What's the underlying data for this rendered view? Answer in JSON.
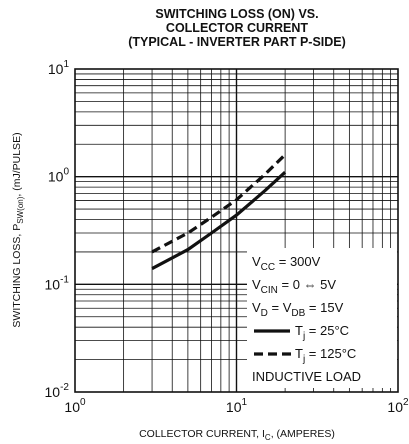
{
  "chart_data": {
    "type": "line",
    "title": [
      "SWITCHING LOSS (ON) VS.",
      "COLLECTOR CURRENT",
      "(TYPICAL - INVERTER PART P-SIDE)"
    ],
    "xlabel": {
      "base": "COLLECTOR CURRENT, I",
      "sub": "C",
      "rest": ", (AMPERES)"
    },
    "ylabel": {
      "base": "SWITCHING LOSS, P",
      "sub": "SW(on)",
      "rest": ", (mJ/PULSE)"
    },
    "x_scale": "log",
    "y_scale": "log",
    "xlim": [
      1,
      100
    ],
    "ylim": [
      0.01,
      10
    ],
    "grid": true,
    "x_ticks": [
      {
        "base": "10",
        "exp": "0",
        "value": 1
      },
      {
        "base": "10",
        "exp": "1",
        "value": 10
      },
      {
        "base": "10",
        "exp": "2",
        "value": 100
      }
    ],
    "y_ticks": [
      {
        "base": "10",
        "exp": "-2",
        "value": 0.01
      },
      {
        "base": "10",
        "exp": "-1",
        "value": 0.1
      },
      {
        "base": "10",
        "exp": "0",
        "value": 1
      },
      {
        "base": "10",
        "exp": "1",
        "value": 10
      }
    ],
    "series": [
      {
        "name": "Tj = 25°C",
        "style": "solid",
        "x": [
          3,
          5,
          7,
          10,
          15,
          20
        ],
        "y": [
          0.14,
          0.21,
          0.3,
          0.44,
          0.74,
          1.1
        ]
      },
      {
        "name": "Tj = 125°C",
        "style": "dashed",
        "x": [
          3,
          5,
          7,
          10,
          15,
          20
        ],
        "y": [
          0.2,
          0.3,
          0.42,
          0.61,
          1.05,
          1.6
        ]
      }
    ],
    "annotations": {
      "vcc": {
        "base": "V",
        "sub": "CC",
        "rest": " = 300V"
      },
      "vcin": {
        "base": "V",
        "sub": "CIN",
        "rest": " = 0 ⇔ 5V"
      },
      "vd": {
        "base": "V",
        "sub": "D",
        "mid": " = V",
        "sub2": "DB",
        "rest": " = 15V"
      },
      "tj25": {
        "base": "T",
        "sub": "j",
        "rest": " = 25°C"
      },
      "tj125": {
        "base": "T",
        "sub": "j",
        "rest": " = 125°C"
      },
      "load": "INDUCTIVE LOAD"
    }
  }
}
